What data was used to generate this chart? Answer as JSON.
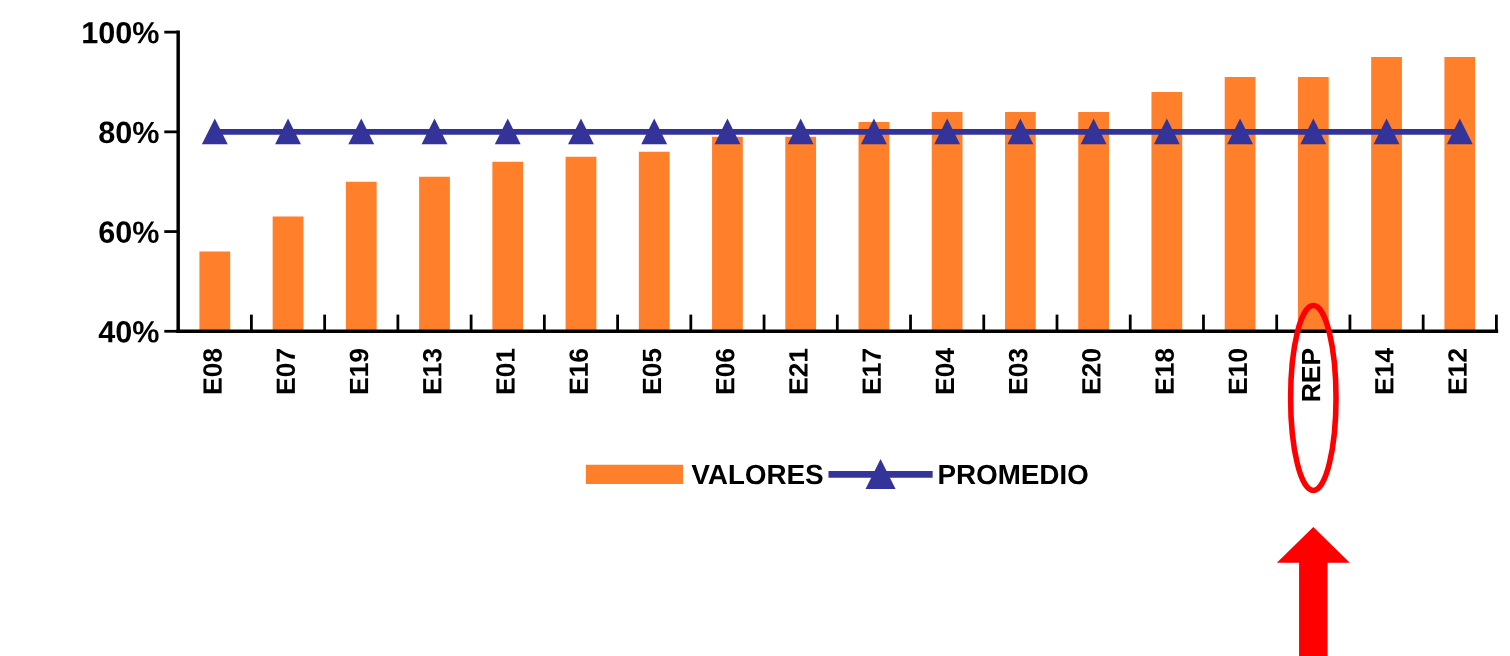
{
  "chart_data": {
    "type": "bar",
    "categories": [
      "E08",
      "E07",
      "E19",
      "E13",
      "E01",
      "E16",
      "E05",
      "E06",
      "E21",
      "E17",
      "E04",
      "E03",
      "E20",
      "E18",
      "E10",
      "REP",
      "E14",
      "E12"
    ],
    "series": [
      {
        "name": "VALORES",
        "color": "#ff7f2a",
        "values": [
          56,
          63,
          70,
          71,
          74,
          75,
          76,
          79,
          79,
          82,
          84,
          84,
          84,
          88,
          91,
          91,
          95,
          95
        ]
      },
      {
        "name": "PROMEDIO",
        "type": "line",
        "color": "#333399",
        "marker": "triangle",
        "values": [
          80,
          80,
          80,
          80,
          80,
          80,
          80,
          80,
          80,
          80,
          80,
          80,
          80,
          80,
          80,
          80,
          80,
          80
        ]
      }
    ],
    "ylim": [
      40,
      100
    ],
    "yticks": [
      {
        "value": 40,
        "label": "40%"
      },
      {
        "value": 60,
        "label": "60%"
      },
      {
        "value": 80,
        "label": "80%"
      },
      {
        "value": 100,
        "label": "100%"
      }
    ],
    "grid": false,
    "legend": "bottom"
  }
}
